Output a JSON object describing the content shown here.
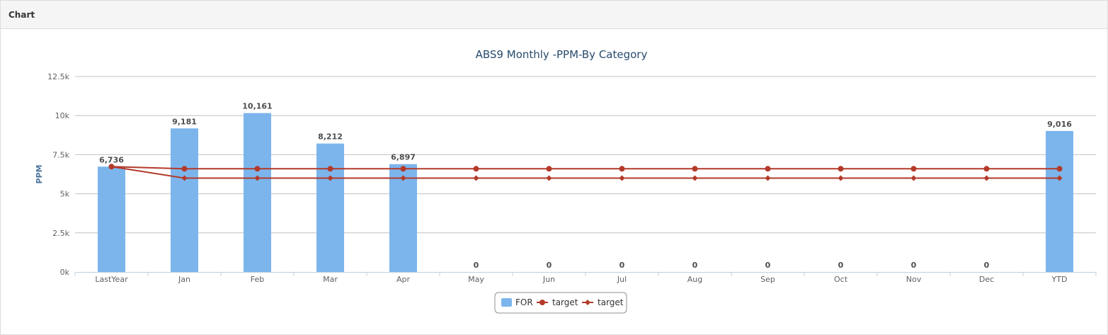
{
  "panel": {
    "title": "Chart"
  },
  "chart_data": {
    "type": "bar",
    "title": "ABS9 Monthly -PPM-By Category",
    "xlabel": "",
    "ylabel": "PPM",
    "categories": [
      "LastYear",
      "Jan",
      "Feb",
      "Mar",
      "Apr",
      "May",
      "Jun",
      "Jul",
      "Aug",
      "Sep",
      "Oct",
      "Nov",
      "Dec",
      "YTD"
    ],
    "ylim": [
      0,
      12500
    ],
    "yticks": [
      0,
      2500,
      5000,
      7500,
      10000,
      12500
    ],
    "ytick_labels": [
      "0k",
      "2.5k",
      "5k",
      "7.5k",
      "10k",
      "12.5k"
    ],
    "grid": true,
    "legend_position": "bottom-center",
    "series": [
      {
        "name": "FOR",
        "type": "bar",
        "color": "#7cb5ec",
        "values": [
          6736,
          9181,
          10161,
          8212,
          6897,
          0,
          0,
          0,
          0,
          0,
          0,
          0,
          0,
          9016
        ],
        "labels": [
          "6,736",
          "9,181",
          "10,161",
          "8,212",
          "6,897",
          "0",
          "0",
          "0",
          "0",
          "0",
          "0",
          "0",
          "0",
          "9,016"
        ]
      },
      {
        "name": "target",
        "type": "line",
        "marker": "circle",
        "color": "#b33a2a",
        "values": [
          6736,
          6600,
          6600,
          6600,
          6600,
          6600,
          6600,
          6600,
          6600,
          6600,
          6600,
          6600,
          6600,
          6600
        ]
      },
      {
        "name": "target",
        "type": "line",
        "marker": "diamond",
        "color": "#b33a2a",
        "values": [
          6736,
          6000,
          6000,
          6000,
          6000,
          6000,
          6000,
          6000,
          6000,
          6000,
          6000,
          6000,
          6000,
          6000
        ]
      }
    ]
  }
}
